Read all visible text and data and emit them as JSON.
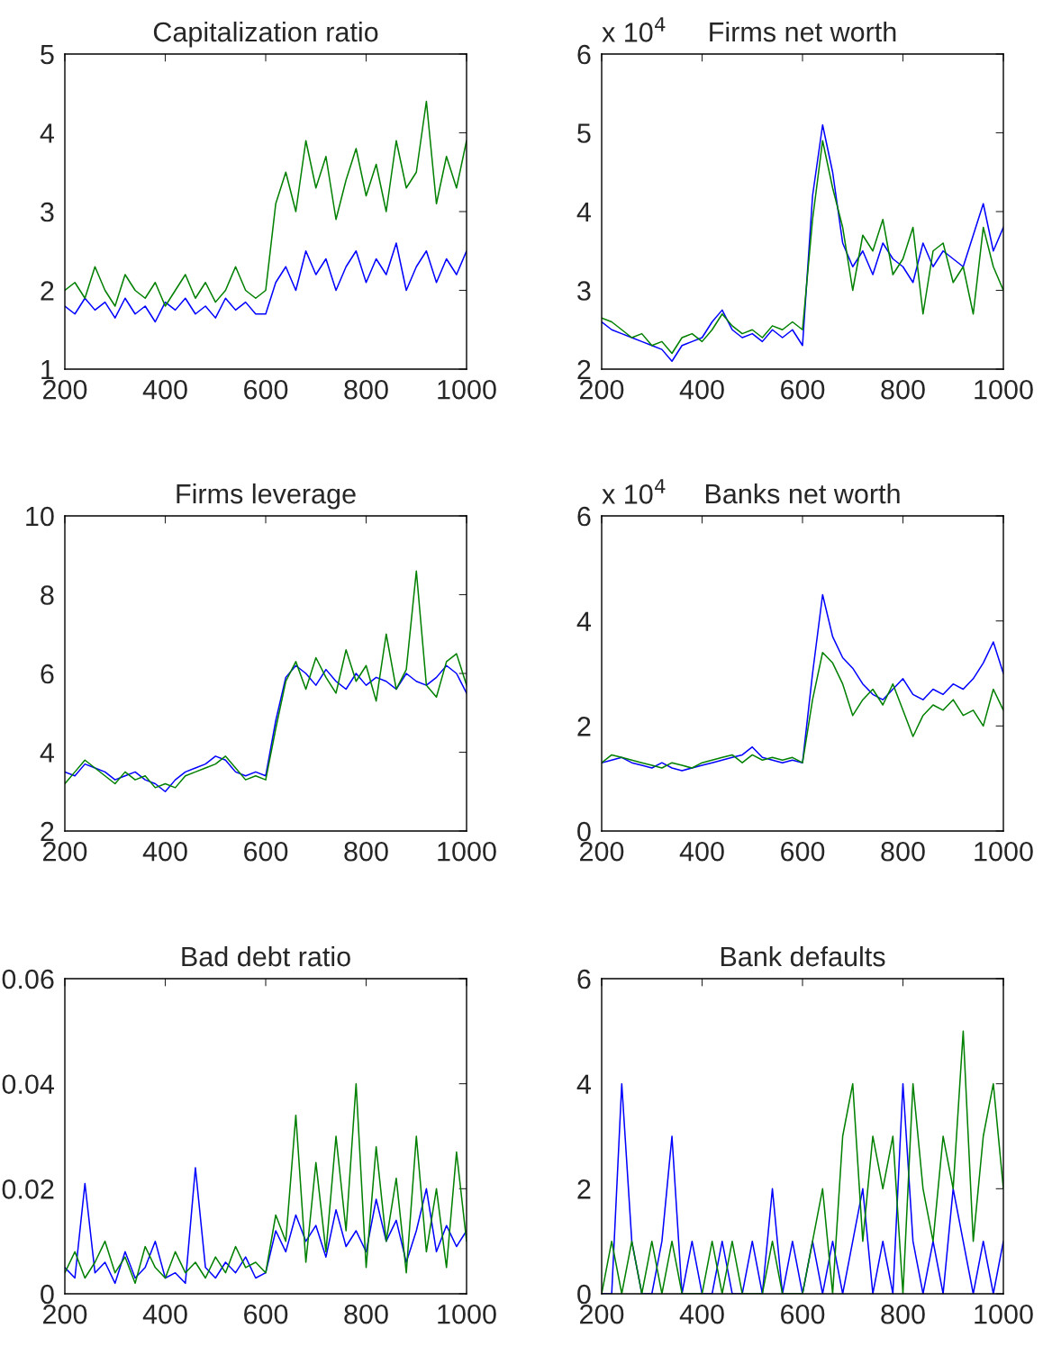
{
  "chart_data": [
    {
      "type": "line",
      "title": "Capitalization ratio",
      "x": [
        200,
        220,
        240,
        260,
        280,
        300,
        320,
        340,
        360,
        380,
        400,
        420,
        440,
        460,
        480,
        500,
        520,
        540,
        560,
        580,
        600,
        620,
        640,
        660,
        680,
        700,
        720,
        740,
        760,
        780,
        800,
        820,
        840,
        860,
        880,
        900,
        920,
        940,
        960,
        980,
        1000
      ],
      "xlim": [
        200,
        1000
      ],
      "xticks": [
        200,
        400,
        600,
        800,
        1000
      ],
      "ylim": [
        1,
        5
      ],
      "yticks": [
        1,
        2,
        3,
        4,
        5
      ],
      "series": [
        {
          "color": "#0000ff",
          "values": [
            1.8,
            1.7,
            1.9,
            1.75,
            1.85,
            1.65,
            1.9,
            1.7,
            1.8,
            1.6,
            1.85,
            1.75,
            1.9,
            1.7,
            1.8,
            1.65,
            1.9,
            1.75,
            1.85,
            1.7,
            1.7,
            2.1,
            2.3,
            2.0,
            2.5,
            2.2,
            2.4,
            2.0,
            2.3,
            2.5,
            2.1,
            2.4,
            2.2,
            2.6,
            2.0,
            2.3,
            2.5,
            2.1,
            2.4,
            2.2,
            2.5
          ]
        },
        {
          "color": "#008000",
          "values": [
            2.0,
            2.1,
            1.9,
            2.3,
            2.0,
            1.8,
            2.2,
            2.0,
            1.9,
            2.1,
            1.8,
            2.0,
            2.2,
            1.9,
            2.1,
            1.85,
            2.0,
            2.3,
            2.0,
            1.9,
            2.0,
            3.1,
            3.5,
            3.0,
            3.9,
            3.3,
            3.7,
            2.9,
            3.4,
            3.8,
            3.2,
            3.6,
            3.0,
            3.9,
            3.3,
            3.5,
            4.4,
            3.1,
            3.7,
            3.3,
            3.9
          ]
        }
      ]
    },
    {
      "type": "line",
      "title": "Firms net worth",
      "annotations": [
        "x 10$^{4}$"
      ],
      "x": [
        200,
        220,
        240,
        260,
        280,
        300,
        320,
        340,
        360,
        380,
        400,
        420,
        440,
        460,
        480,
        500,
        520,
        540,
        560,
        580,
        600,
        620,
        640,
        660,
        680,
        700,
        720,
        740,
        760,
        780,
        800,
        820,
        840,
        860,
        880,
        900,
        920,
        940,
        960,
        980,
        1000
      ],
      "xlim": [
        200,
        1000
      ],
      "xticks": [
        200,
        400,
        600,
        800,
        1000
      ],
      "ylim": [
        2,
        6
      ],
      "yticks": [
        2,
        3,
        4,
        5,
        6
      ],
      "series": [
        {
          "color": "#0000ff",
          "values": [
            2.6,
            2.5,
            2.45,
            2.4,
            2.35,
            2.3,
            2.25,
            2.1,
            2.3,
            2.35,
            2.4,
            2.6,
            2.75,
            2.5,
            2.4,
            2.45,
            2.35,
            2.5,
            2.4,
            2.5,
            2.3,
            4.2,
            5.1,
            4.5,
            3.6,
            3.3,
            3.5,
            3.2,
            3.6,
            3.4,
            3.3,
            3.1,
            3.6,
            3.3,
            3.5,
            3.4,
            3.3,
            3.7,
            4.1,
            3.5,
            3.8
          ]
        },
        {
          "color": "#008000",
          "values": [
            2.65,
            2.6,
            2.5,
            2.4,
            2.45,
            2.3,
            2.35,
            2.2,
            2.4,
            2.45,
            2.35,
            2.5,
            2.7,
            2.55,
            2.45,
            2.5,
            2.4,
            2.55,
            2.5,
            2.6,
            2.5,
            3.9,
            4.9,
            4.3,
            3.8,
            3.0,
            3.7,
            3.5,
            3.9,
            3.2,
            3.4,
            3.8,
            2.7,
            3.5,
            3.6,
            3.1,
            3.3,
            2.7,
            3.8,
            3.3,
            3.0
          ]
        }
      ]
    },
    {
      "type": "line",
      "title": "Firms leverage",
      "x": [
        200,
        220,
        240,
        260,
        280,
        300,
        320,
        340,
        360,
        380,
        400,
        420,
        440,
        460,
        480,
        500,
        520,
        540,
        560,
        580,
        600,
        620,
        640,
        660,
        680,
        700,
        720,
        740,
        760,
        780,
        800,
        820,
        840,
        860,
        880,
        900,
        920,
        940,
        960,
        980,
        1000
      ],
      "xlim": [
        200,
        1000
      ],
      "xticks": [
        200,
        400,
        600,
        800,
        1000
      ],
      "ylim": [
        2,
        10
      ],
      "yticks": [
        2,
        4,
        6,
        8,
        10
      ],
      "series": [
        {
          "color": "#0000ff",
          "values": [
            3.5,
            3.4,
            3.7,
            3.6,
            3.5,
            3.3,
            3.4,
            3.5,
            3.3,
            3.2,
            3.0,
            3.3,
            3.5,
            3.6,
            3.7,
            3.9,
            3.8,
            3.5,
            3.4,
            3.5,
            3.4,
            4.8,
            5.9,
            6.2,
            6.0,
            5.7,
            6.1,
            5.8,
            5.6,
            6.0,
            5.7,
            5.9,
            5.8,
            5.6,
            6.0,
            5.8,
            5.7,
            5.9,
            6.2,
            6.0,
            5.5
          ]
        },
        {
          "color": "#008000",
          "values": [
            3.2,
            3.5,
            3.8,
            3.6,
            3.4,
            3.2,
            3.5,
            3.3,
            3.4,
            3.1,
            3.2,
            3.1,
            3.4,
            3.5,
            3.6,
            3.7,
            3.9,
            3.6,
            3.3,
            3.4,
            3.3,
            4.6,
            5.8,
            6.3,
            5.6,
            6.4,
            5.9,
            5.5,
            6.6,
            5.8,
            6.2,
            5.3,
            7.0,
            5.6,
            6.1,
            8.6,
            5.7,
            5.4,
            6.3,
            6.5,
            5.7
          ]
        }
      ]
    },
    {
      "type": "line",
      "title": "Banks net worth",
      "annotations": [
        "x 10$^{4}$"
      ],
      "x": [
        200,
        220,
        240,
        260,
        280,
        300,
        320,
        340,
        360,
        380,
        400,
        420,
        440,
        460,
        480,
        500,
        520,
        540,
        560,
        580,
        600,
        620,
        640,
        660,
        680,
        700,
        720,
        740,
        760,
        780,
        800,
        820,
        840,
        860,
        880,
        900,
        920,
        940,
        960,
        980,
        1000
      ],
      "xlim": [
        200,
        1000
      ],
      "xticks": [
        200,
        400,
        600,
        800,
        1000
      ],
      "ylim": [
        0,
        6
      ],
      "yticks": [
        0,
        2,
        4,
        6
      ],
      "series": [
        {
          "color": "#0000ff",
          "values": [
            1.3,
            1.35,
            1.4,
            1.3,
            1.25,
            1.2,
            1.3,
            1.2,
            1.15,
            1.2,
            1.25,
            1.3,
            1.35,
            1.4,
            1.45,
            1.6,
            1.4,
            1.35,
            1.3,
            1.35,
            1.3,
            3.0,
            4.5,
            3.7,
            3.3,
            3.1,
            2.8,
            2.6,
            2.5,
            2.7,
            2.9,
            2.6,
            2.5,
            2.7,
            2.6,
            2.8,
            2.7,
            2.9,
            3.2,
            3.6,
            3.0
          ]
        },
        {
          "color": "#008000",
          "values": [
            1.3,
            1.45,
            1.4,
            1.35,
            1.3,
            1.25,
            1.2,
            1.3,
            1.25,
            1.2,
            1.3,
            1.35,
            1.4,
            1.45,
            1.3,
            1.45,
            1.35,
            1.4,
            1.35,
            1.4,
            1.3,
            2.5,
            3.4,
            3.2,
            2.8,
            2.2,
            2.5,
            2.7,
            2.4,
            2.8,
            2.3,
            1.8,
            2.2,
            2.4,
            2.3,
            2.5,
            2.2,
            2.3,
            2.0,
            2.7,
            2.3
          ]
        }
      ]
    },
    {
      "type": "line",
      "title": "Bad debt ratio",
      "x": [
        200,
        220,
        240,
        260,
        280,
        300,
        320,
        340,
        360,
        380,
        400,
        420,
        440,
        460,
        480,
        500,
        520,
        540,
        560,
        580,
        600,
        620,
        640,
        660,
        680,
        700,
        720,
        740,
        760,
        780,
        800,
        820,
        840,
        860,
        880,
        900,
        920,
        940,
        960,
        980,
        1000
      ],
      "xlim": [
        200,
        1000
      ],
      "xticks": [
        200,
        400,
        600,
        800,
        1000
      ],
      "ylim": [
        0,
        0.06
      ],
      "yticks": [
        0,
        0.02,
        0.04,
        0.06
      ],
      "series": [
        {
          "color": "#0000ff",
          "values": [
            0.005,
            0.003,
            0.021,
            0.004,
            0.006,
            0.002,
            0.008,
            0.003,
            0.005,
            0.01,
            0.003,
            0.004,
            0.002,
            0.024,
            0.005,
            0.003,
            0.006,
            0.004,
            0.007,
            0.003,
            0.004,
            0.012,
            0.008,
            0.015,
            0.01,
            0.013,
            0.007,
            0.016,
            0.009,
            0.012,
            0.008,
            0.018,
            0.01,
            0.014,
            0.006,
            0.012,
            0.02,
            0.008,
            0.013,
            0.009,
            0.012
          ]
        },
        {
          "color": "#008000",
          "values": [
            0.004,
            0.008,
            0.003,
            0.006,
            0.01,
            0.004,
            0.007,
            0.002,
            0.009,
            0.005,
            0.003,
            0.008,
            0.004,
            0.006,
            0.003,
            0.007,
            0.004,
            0.009,
            0.005,
            0.006,
            0.004,
            0.015,
            0.01,
            0.034,
            0.006,
            0.025,
            0.008,
            0.03,
            0.012,
            0.04,
            0.005,
            0.028,
            0.01,
            0.022,
            0.004,
            0.03,
            0.008,
            0.02,
            0.005,
            0.027,
            0.01
          ]
        }
      ]
    },
    {
      "type": "line",
      "title": "Bank defaults",
      "x": [
        200,
        220,
        240,
        260,
        280,
        300,
        320,
        340,
        360,
        380,
        400,
        420,
        440,
        460,
        480,
        500,
        520,
        540,
        560,
        580,
        600,
        620,
        640,
        660,
        680,
        700,
        720,
        740,
        760,
        780,
        800,
        820,
        840,
        860,
        880,
        900,
        920,
        940,
        960,
        980,
        1000
      ],
      "xlim": [
        200,
        1000
      ],
      "xticks": [
        200,
        400,
        600,
        800,
        1000
      ],
      "ylim": [
        0,
        6
      ],
      "yticks": [
        0,
        2,
        4,
        6
      ],
      "series": [
        {
          "color": "#0000ff",
          "values": [
            0,
            0,
            4,
            1,
            0,
            0,
            1,
            3,
            0,
            1,
            0,
            0,
            1,
            0,
            0,
            1,
            0,
            2,
            0,
            1,
            0,
            1,
            0,
            1,
            0,
            1,
            2,
            0,
            1,
            0,
            4,
            1,
            0,
            1,
            0,
            2,
            1,
            0,
            1,
            0,
            1
          ]
        },
        {
          "color": "#008000",
          "values": [
            0,
            1,
            0,
            1,
            0,
            1,
            0,
            1,
            0,
            0,
            0,
            1,
            0,
            1,
            0,
            0,
            0,
            1,
            0,
            0,
            0,
            1,
            2,
            0,
            3,
            4,
            1,
            3,
            2,
            3,
            0,
            4,
            2,
            1,
            3,
            2,
            5,
            1,
            3,
            4,
            2
          ]
        }
      ]
    }
  ]
}
